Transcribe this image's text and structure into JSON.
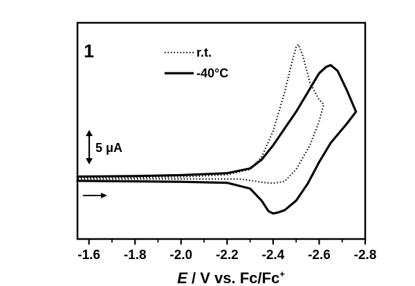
{
  "chart_data": {
    "type": "line",
    "panel_label": "1",
    "x_reversed": true,
    "xlim": [
      -1.55,
      -2.8
    ],
    "ylim": [
      -12.5,
      32.5
    ],
    "x_ticks": [
      -1.6,
      -1.8,
      -2.0,
      -2.2,
      -2.4,
      -2.6,
      -2.8
    ],
    "x_tick_labels": [
      "-1.6",
      "-1.8",
      "-2.0",
      "-2.2",
      "-2.4",
      "-2.6",
      "-2.8"
    ],
    "xlabel": {
      "italic": "E",
      "text": " / V vs. Fc/Fc",
      "sup": "+"
    },
    "ylabel": "",
    "grid": false,
    "legend_position": "top-center",
    "scale_bar": {
      "label": "5 μA",
      "value": 5
    },
    "scan_direction_arrow": "→",
    "series": [
      {
        "name": "r.t.",
        "style": "dotted",
        "color": "#000000",
        "x": [
          -1.55,
          -1.8,
          -2.0,
          -2.2,
          -2.3,
          -2.35,
          -2.4,
          -2.45,
          -2.48,
          -2.5,
          -2.51,
          -2.53,
          -2.56,
          -2.6,
          -2.62,
          -2.6,
          -2.56,
          -2.5,
          -2.45,
          -2.4,
          -2.35,
          -2.3,
          -2.25,
          -2.2,
          -2.0,
          -1.8,
          -1.55
        ],
        "y": [
          0.3,
          0.3,
          0.4,
          0.9,
          2.0,
          4.5,
          10.0,
          18.0,
          24.0,
          27.5,
          28.0,
          25.5,
          20.0,
          16.5,
          15.5,
          12.0,
          7.0,
          2.0,
          -0.5,
          -0.9,
          -0.7,
          -0.3,
          0.0,
          0.0,
          0.0,
          0.0,
          0.0
        ]
      },
      {
        "name": "-40°C",
        "style": "solid",
        "color": "#000000",
        "x": [
          -1.55,
          -1.8,
          -2.0,
          -2.2,
          -2.3,
          -2.35,
          -2.4,
          -2.45,
          -2.5,
          -2.55,
          -2.6,
          -2.63,
          -2.65,
          -2.68,
          -2.72,
          -2.76,
          -2.72,
          -2.65,
          -2.6,
          -2.55,
          -2.5,
          -2.45,
          -2.42,
          -2.4,
          -2.38,
          -2.35,
          -2.3,
          -2.2,
          -2.0,
          -1.8,
          -1.55
        ],
        "y": [
          0.5,
          0.6,
          0.8,
          1.2,
          2.2,
          4.0,
          7.0,
          10.5,
          14.0,
          18.0,
          22.0,
          23.3,
          23.7,
          22.5,
          18.5,
          14.0,
          11.5,
          7.5,
          3.5,
          -1.0,
          -4.5,
          -6.5,
          -7.0,
          -7.2,
          -6.7,
          -4.5,
          -2.0,
          -0.8,
          -0.6,
          -0.5,
          -0.4
        ]
      }
    ]
  }
}
